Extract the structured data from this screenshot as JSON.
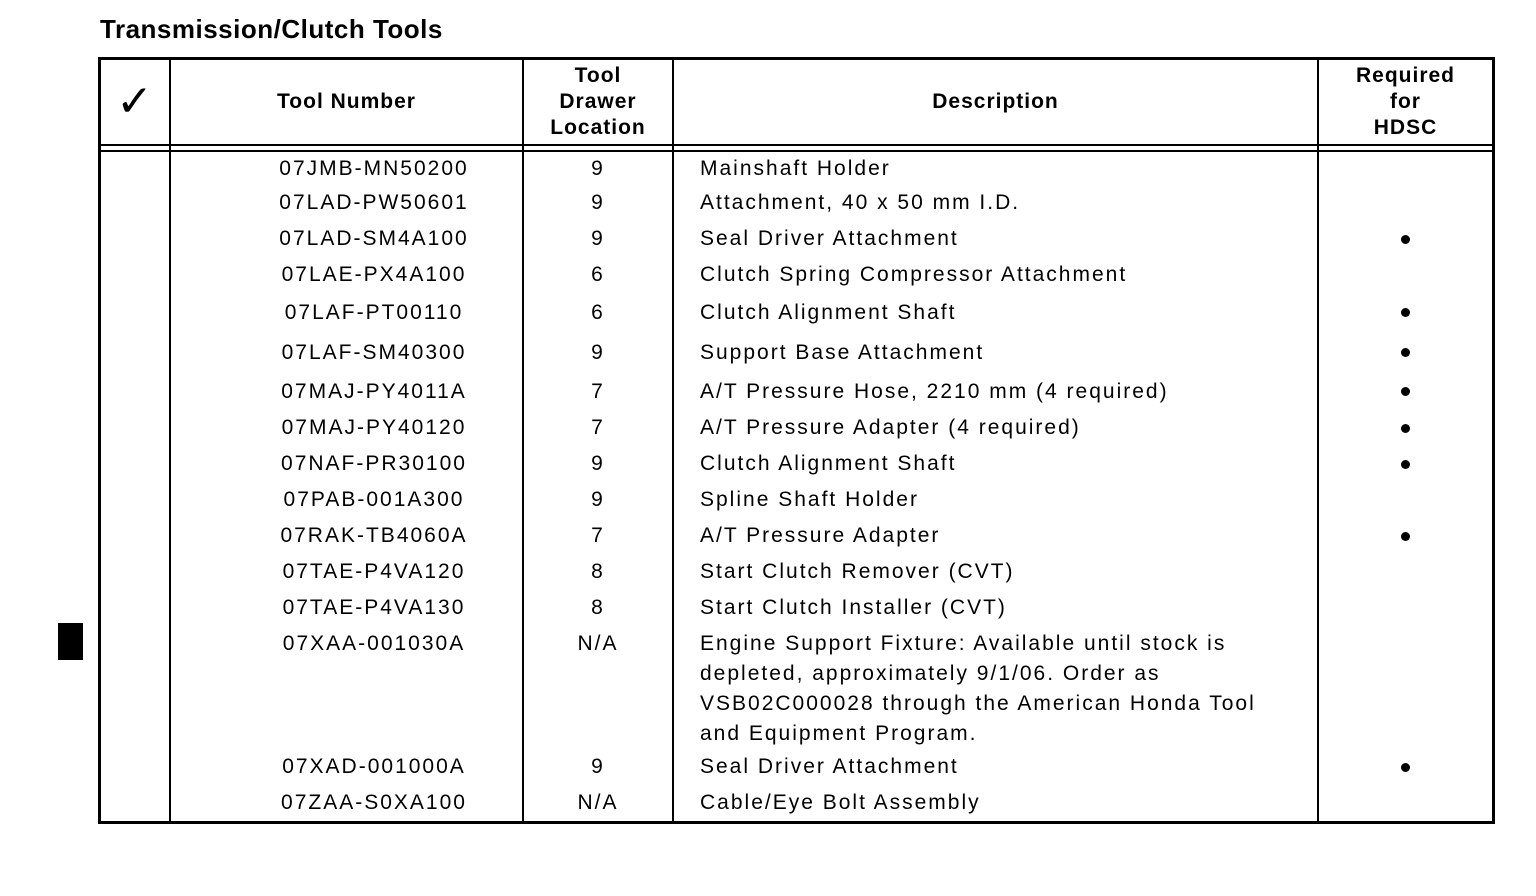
{
  "page": {
    "title": "Transmission/Clutch Tools"
  },
  "colors": {
    "ink": "#000000",
    "paper": "#ffffff"
  },
  "table": {
    "headers": {
      "check": "✓",
      "tool_number": "Tool Number",
      "drawer_location": "Tool\nDrawer\nLocation",
      "description": "Description",
      "required_hdsc": "Required\nfor\nHDSC"
    },
    "rows": [
      {
        "tool_number": "07JMB-MN50200",
        "drawer_location": "9",
        "description": "Mainshaft Holder",
        "required_for_hdsc": false
      },
      {
        "tool_number": "07LAD-PW50601",
        "drawer_location": "9",
        "description": "Attachment, 40 x 50 mm I.D.",
        "required_for_hdsc": false
      },
      {
        "tool_number": "07LAD-SM4A100",
        "drawer_location": "9",
        "description": "Seal Driver Attachment",
        "required_for_hdsc": true
      },
      {
        "tool_number": "07LAE-PX4A100",
        "drawer_location": "6",
        "description": "Clutch Spring Compressor Attachment",
        "required_for_hdsc": false
      },
      {
        "tool_number": "07LAF-PT00110",
        "drawer_location": "6",
        "description": "Clutch Alignment Shaft",
        "required_for_hdsc": true
      },
      {
        "tool_number": "07LAF-SM40300",
        "drawer_location": "9",
        "description": "Support Base Attachment",
        "required_for_hdsc": true
      },
      {
        "tool_number": "07MAJ-PY4011A",
        "drawer_location": "7",
        "description": "A/T Pressure Hose, 2210 mm (4 required)",
        "required_for_hdsc": true
      },
      {
        "tool_number": "07MAJ-PY40120",
        "drawer_location": "7",
        "description": "A/T Pressure Adapter (4 required)",
        "required_for_hdsc": true
      },
      {
        "tool_number": "07NAF-PR30100",
        "drawer_location": "9",
        "description": "Clutch Alignment Shaft",
        "required_for_hdsc": true
      },
      {
        "tool_number": "07PAB-001A300",
        "drawer_location": "9",
        "description": "Spline Shaft Holder",
        "required_for_hdsc": false
      },
      {
        "tool_number": "07RAK-TB4060A",
        "drawer_location": "7",
        "description": "A/T Pressure Adapter",
        "required_for_hdsc": true
      },
      {
        "tool_number": "07TAE-P4VA120",
        "drawer_location": "8",
        "description": "Start Clutch Remover (CVT)",
        "required_for_hdsc": false
      },
      {
        "tool_number": "07TAE-P4VA130",
        "drawer_location": "8",
        "description": "Start Clutch Installer (CVT)",
        "required_for_hdsc": false
      },
      {
        "tool_number": "07XAA-001030A",
        "drawer_location": "N/A",
        "description": "Engine Support Fixture: Available until stock is\ndepleted, approximately 9/1/06. Order as\nVSB02C000028 through the American Honda Tool\nand Equipment Program.",
        "required_for_hdsc": false
      },
      {
        "tool_number": "07XAD-001000A",
        "drawer_location": "9",
        "description": "Seal Driver Attachment",
        "required_for_hdsc": true
      },
      {
        "tool_number": "07ZAA-S0XA100",
        "drawer_location": "N/A",
        "description": "Cable/Eye Bolt Assembly",
        "required_for_hdsc": false
      }
    ]
  }
}
